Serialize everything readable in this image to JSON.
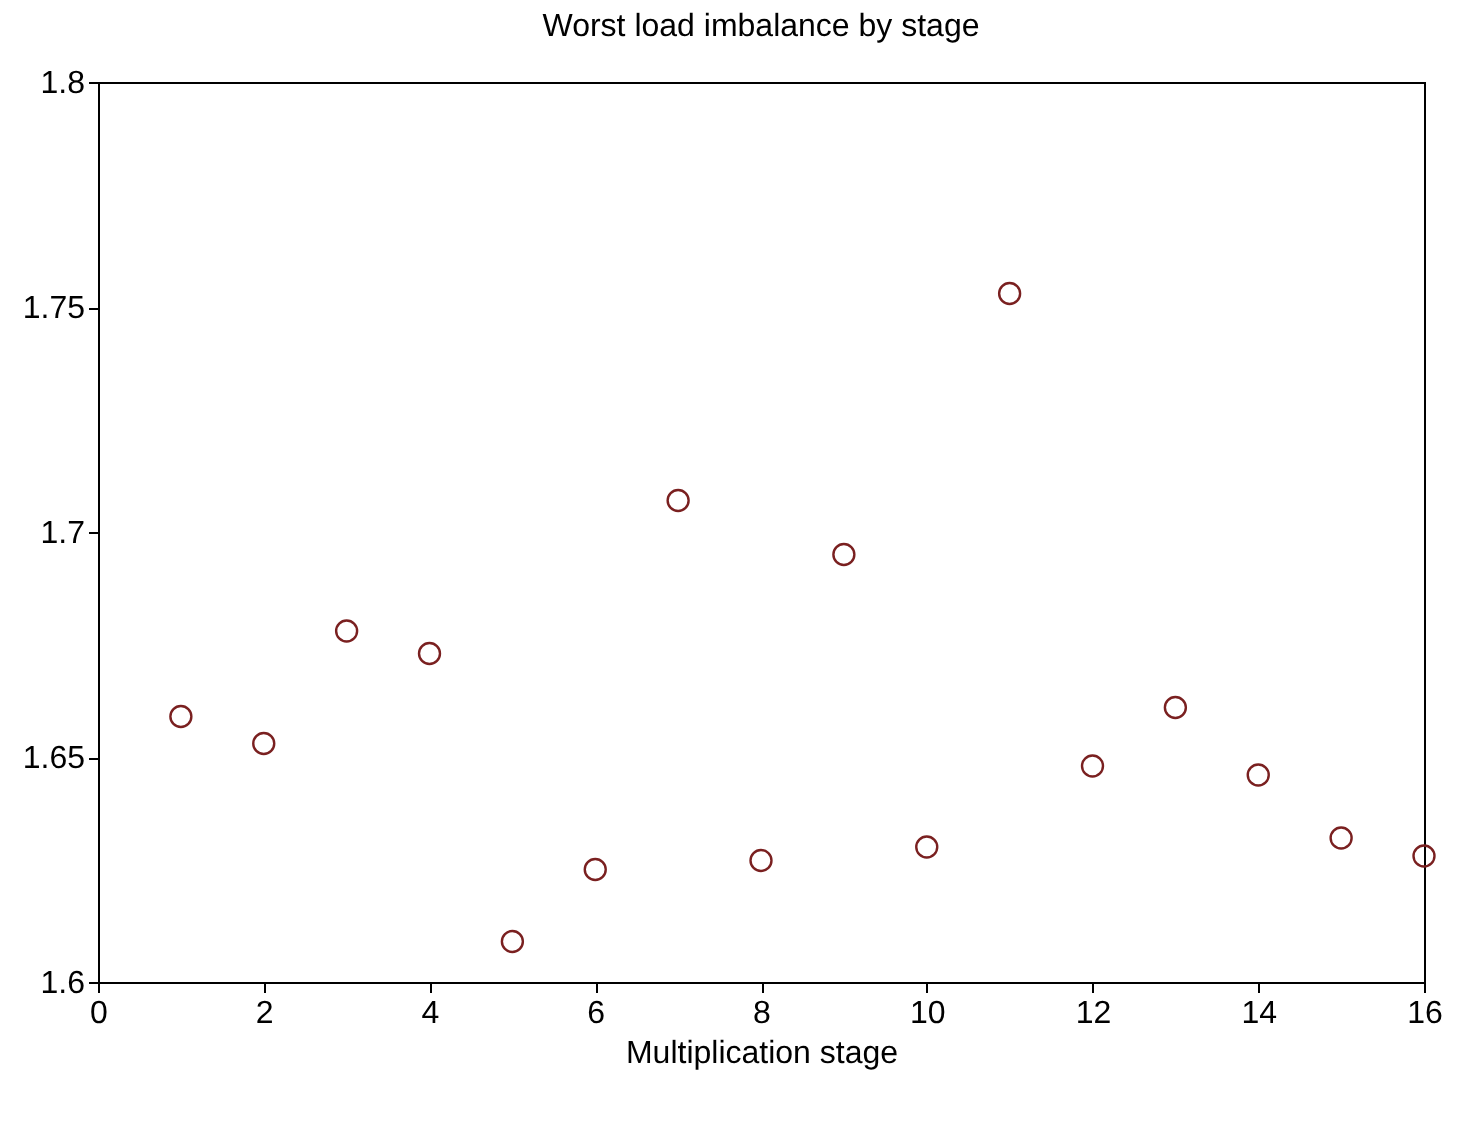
{
  "chart_data": {
    "type": "scatter",
    "title": "Worst load imbalance by stage",
    "xlabel": "Multiplication stage",
    "x": [
      1,
      2,
      3,
      4,
      5,
      6,
      7,
      8,
      9,
      10,
      11,
      12,
      13,
      14,
      15,
      16
    ],
    "series": [
      {
        "color": "#7a2020",
        "values": [
          1.659,
          1.653,
          1.678,
          1.673,
          1.609,
          1.625,
          1.707,
          1.627,
          1.695,
          1.63,
          1.753,
          1.648,
          1.661,
          1.646,
          1.632,
          1.628
        ]
      }
    ],
    "xlim": [
      0,
      16
    ],
    "xticks": [
      0,
      2,
      4,
      6,
      8,
      10,
      12,
      14,
      16
    ],
    "ylim": [
      1.6,
      1.8
    ],
    "yticks": [
      1.6,
      1.65,
      1.7,
      1.75,
      1.8
    ],
    "marker": "circle",
    "grid": false
  }
}
